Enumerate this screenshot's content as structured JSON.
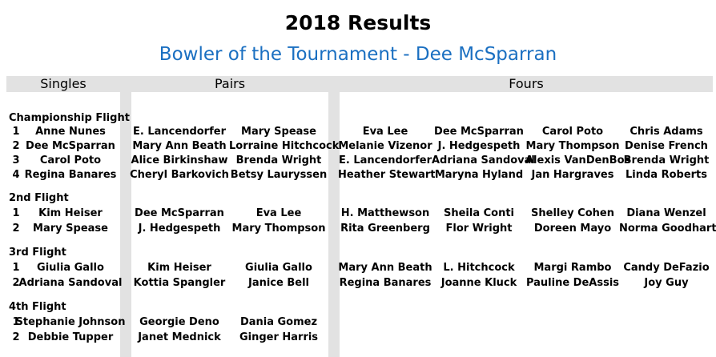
{
  "title": "2018 Results",
  "subtitle": "Bowler of the Tournament - Dee McSparran",
  "headers": {
    "singles": "Singles",
    "pairs": "Pairs",
    "fours": "Fours"
  },
  "flights": [
    {
      "name": "Championship Flight",
      "rows": [
        {
          "rank": "1",
          "single": "Anne Nunes",
          "pair": [
            "E. Lancendorfer",
            "Mary Spease"
          ],
          "fours": [
            "Eva Lee",
            "Dee McSparran",
            "Carol Poto",
            "Chris Adams"
          ]
        },
        {
          "rank": "2",
          "single": "Dee McSparran",
          "pair": [
            "Mary Ann Beath",
            "Lorraine Hitchcock"
          ],
          "fours": [
            "Melanie Vizenor",
            "J. Hedgespeth",
            "Mary Thompson",
            "Denise French"
          ]
        },
        {
          "rank": "3",
          "single": "Carol Poto",
          "pair": [
            "Alice Birkinshaw",
            "Brenda Wright"
          ],
          "fours": [
            "E. Lancendorfer",
            "Adriana Sandoval",
            "Alexis VanDenBos",
            "Brenda Wright"
          ]
        },
        {
          "rank": "4",
          "single": "Regina Banares",
          "pair": [
            "Cheryl Barkovich",
            "Betsy Lauryssen"
          ],
          "fours": [
            "Heather Stewart",
            "Maryna Hyland",
            "Jan Hargraves",
            "Linda Roberts"
          ]
        }
      ]
    },
    {
      "name": "2nd Flight",
      "rows": [
        {
          "rank": "1",
          "single": "Kim Heiser",
          "pair": [
            "Dee McSparran",
            "Eva Lee"
          ],
          "fours": [
            "H. Matthewson",
            "Sheila Conti",
            "Shelley Cohen",
            "Diana Wenzel"
          ]
        },
        {
          "rank": "2",
          "single": "Mary Spease",
          "pair": [
            "J. Hedgespeth",
            "Mary Thompson"
          ],
          "fours": [
            "Rita Greenberg",
            "Flor Wright",
            "Doreen Mayo",
            "Norma Goodhart"
          ]
        }
      ]
    },
    {
      "name": "3rd Flight",
      "rows": [
        {
          "rank": "1",
          "single": "Giulia Gallo",
          "pair": [
            "Kim Heiser",
            "Giulia Gallo"
          ],
          "fours": [
            "Mary Ann Beath",
            "L. Hitchcock",
            "Margi Rambo",
            "Candy DeFazio"
          ]
        },
        {
          "rank": "2",
          "single": "Adriana Sandoval",
          "pair": [
            "Kottia Spangler",
            "Janice Bell"
          ],
          "fours": [
            "Regina Banares",
            "Joanne Kluck",
            "Pauline DeAssis",
            "Joy Guy"
          ]
        }
      ]
    },
    {
      "name": "4th Flight",
      "rows": [
        {
          "rank": "1",
          "single": "Stephanie Johnson",
          "pair": [
            "Georgie Deno",
            "Dania Gomez"
          ],
          "fours": []
        },
        {
          "rank": "2",
          "single": "Debbie Tupper",
          "pair": [
            "Janet Mednick",
            "Ginger Harris"
          ],
          "fours": []
        }
      ]
    }
  ]
}
